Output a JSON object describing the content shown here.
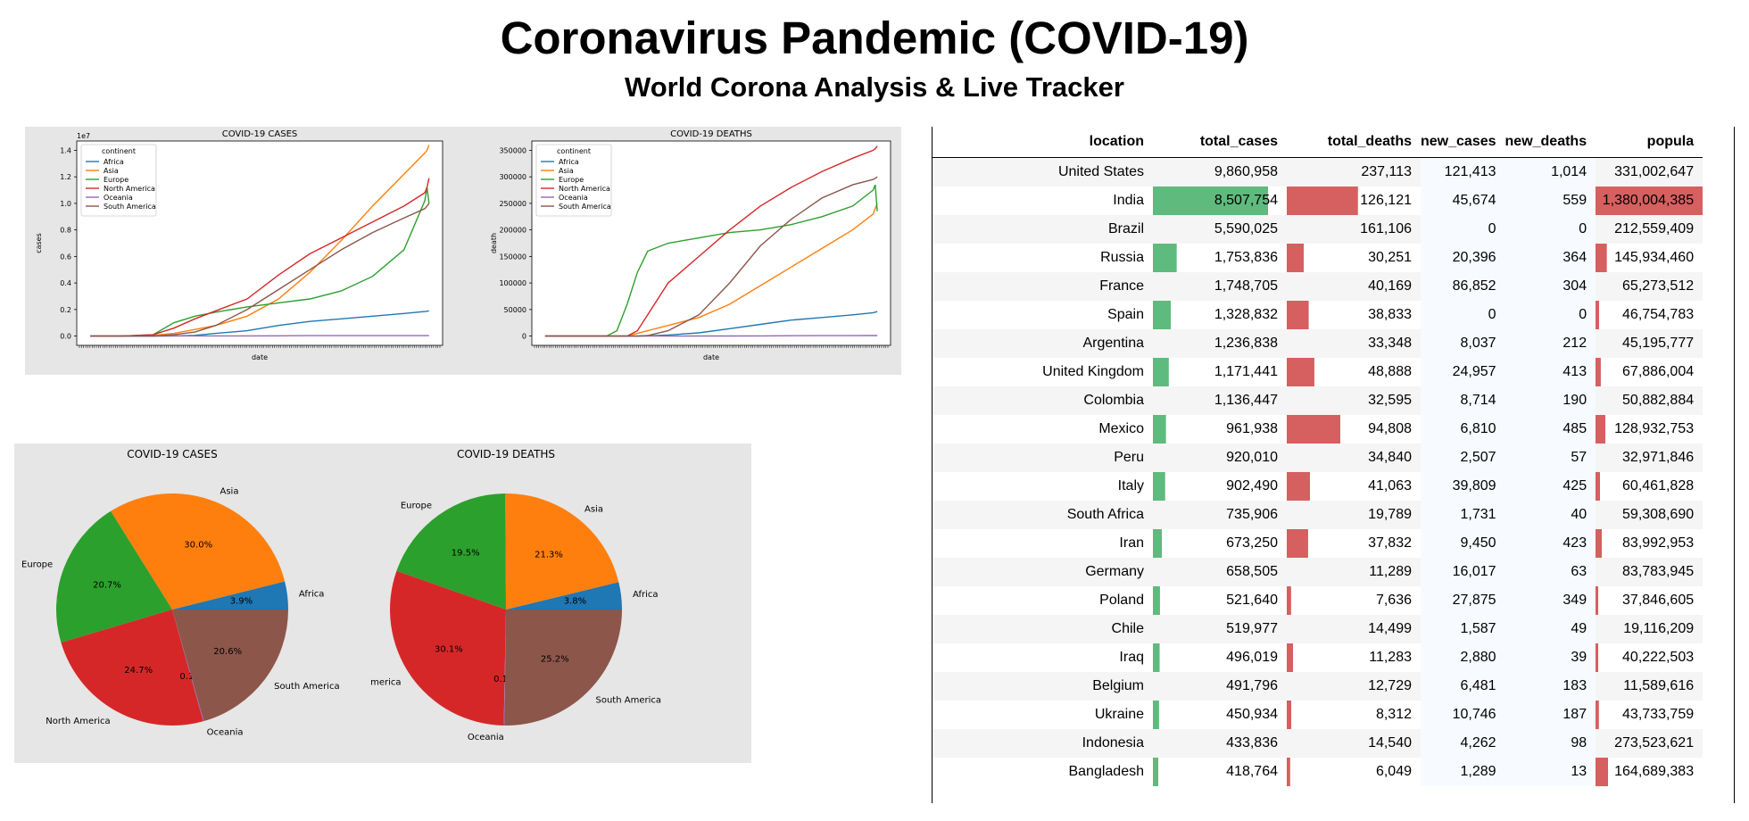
{
  "page": {
    "title": "Coronavirus Pandemic (COVID-19)",
    "subtitle": "World Corona Analysis & Live Tracker"
  },
  "colors": {
    "Africa": "#1f77b4",
    "Asia": "#ff7f0e",
    "Europe": "#2ca02c",
    "North America": "#d62728",
    "Oceania": "#9467bd",
    "South America": "#8c564b",
    "bar_green": "#5fba7d",
    "bar_red": "#d65f5f",
    "panel_bg": "#e6e6e6"
  },
  "chart_data": [
    {
      "id": "line-cases",
      "type": "line",
      "title": "COVID-19 CASES",
      "xlabel": "date",
      "ylabel": "cases",
      "offset_label": "1e7",
      "ylim": [
        -0.07,
        1.47
      ],
      "yticks": [
        0.0,
        0.2,
        0.4,
        0.6,
        0.8,
        1.0,
        1.2,
        1.4
      ],
      "ytick_labels": [
        "0.0",
        "0.2",
        "0.4",
        "0.6",
        "0.8",
        "1.0",
        "1.2",
        "1.4"
      ],
      "legend_title": "continent",
      "legend_position": "upper-left",
      "x": [
        0,
        30,
        60,
        80,
        100,
        120,
        150,
        180,
        210,
        240,
        270,
        300,
        320,
        322,
        324
      ],
      "series": [
        {
          "name": "Africa",
          "values": [
            0,
            0,
            0,
            0.001,
            0.005,
            0.02,
            0.04,
            0.08,
            0.11,
            0.13,
            0.15,
            0.17,
            0.185,
            0.187,
            0.19
          ]
        },
        {
          "name": "Asia",
          "values": [
            0,
            0,
            0.005,
            0.02,
            0.05,
            0.08,
            0.15,
            0.28,
            0.48,
            0.72,
            0.98,
            1.22,
            1.38,
            1.4,
            1.44
          ]
        },
        {
          "name": "Europe",
          "values": [
            0,
            0,
            0.01,
            0.1,
            0.15,
            0.18,
            0.22,
            0.25,
            0.28,
            0.34,
            0.45,
            0.65,
            1.02,
            1.12,
            1.0
          ]
        },
        {
          "name": "North America",
          "values": [
            0,
            0,
            0.01,
            0.06,
            0.13,
            0.19,
            0.28,
            0.46,
            0.62,
            0.74,
            0.86,
            0.98,
            1.08,
            1.12,
            1.19
          ]
        },
        {
          "name": "Oceania",
          "values": [
            0,
            0,
            0,
            0.001,
            0.001,
            0.001,
            0.001,
            0.002,
            0.003,
            0.003,
            0.003,
            0.003,
            0.003,
            0.003,
            0.003
          ]
        },
        {
          "name": "South America",
          "values": [
            0,
            0,
            0,
            0.01,
            0.03,
            0.08,
            0.2,
            0.35,
            0.5,
            0.65,
            0.78,
            0.89,
            0.96,
            0.98,
            1.0
          ]
        }
      ]
    },
    {
      "id": "line-deaths",
      "type": "line",
      "title": "COVID-19 DEATHS",
      "xlabel": "date",
      "ylabel": "death",
      "ylim": [
        -17500,
        367500
      ],
      "yticks": [
        0,
        50000,
        100000,
        150000,
        200000,
        250000,
        300000,
        350000
      ],
      "ytick_labels": [
        "0",
        "50000",
        "100000",
        "150000",
        "200000",
        "250000",
        "300000",
        "350000"
      ],
      "legend_title": "continent",
      "legend_position": "upper-left",
      "x": [
        0,
        30,
        60,
        70,
        80,
        90,
        100,
        120,
        150,
        180,
        210,
        240,
        270,
        300,
        320,
        322,
        324
      ],
      "series": [
        {
          "name": "Africa",
          "values": [
            0,
            0,
            0,
            0,
            0,
            0,
            500,
            2000,
            6000,
            14000,
            22000,
            30000,
            35000,
            40000,
            44000,
            45000,
            46000
          ]
        },
        {
          "name": "Asia",
          "values": [
            0,
            0,
            0,
            0,
            0,
            5000,
            10000,
            20000,
            35000,
            60000,
            95000,
            130000,
            165000,
            200000,
            230000,
            240000,
            250000
          ]
        },
        {
          "name": "Europe",
          "values": [
            0,
            0,
            0,
            10000,
            60000,
            120000,
            160000,
            175000,
            185000,
            195000,
            200000,
            210000,
            225000,
            245000,
            275000,
            285000,
            235000
          ]
        },
        {
          "name": "North America",
          "values": [
            0,
            0,
            0,
            0,
            0,
            10000,
            40000,
            100000,
            150000,
            200000,
            245000,
            280000,
            310000,
            335000,
            350000,
            353000,
            358000
          ]
        },
        {
          "name": "Oceania",
          "values": [
            0,
            0,
            0,
            0,
            0,
            0,
            0,
            0,
            100,
            200,
            400,
            600,
            800,
            900,
            1000,
            1000,
            1000
          ]
        },
        {
          "name": "South America",
          "values": [
            0,
            0,
            0,
            0,
            0,
            0,
            1000,
            10000,
            40000,
            100000,
            170000,
            220000,
            260000,
            285000,
            295000,
            297000,
            300000
          ]
        }
      ]
    },
    {
      "id": "pie-cases",
      "type": "pie",
      "title": "COVID-19 CASES",
      "labels": [
        "Africa",
        "Asia",
        "Europe",
        "North America",
        "Oceania",
        "South America"
      ],
      "values": [
        3.9,
        30.0,
        20.7,
        24.7,
        0.1,
        20.6
      ],
      "value_labels": [
        "3.9%",
        "30.0%",
        "20.7%",
        "24.7%",
        "0.1%",
        "20.6%"
      ]
    },
    {
      "id": "pie-deaths",
      "type": "pie",
      "title": "COVID-19 DEATHS",
      "labels": [
        "Africa",
        "Asia",
        "Europe",
        "North America",
        "Oceania",
        "South America"
      ],
      "values": [
        3.8,
        21.3,
        19.5,
        30.1,
        0.1,
        25.2
      ],
      "value_labels": [
        "3.8%",
        "21.3%",
        "19.5%",
        "30.1%",
        "0.1%",
        "25.2%"
      ]
    },
    {
      "id": "table",
      "type": "table",
      "columns": [
        "location",
        "total_cases",
        "total_deaths",
        "new_cases",
        "new_deaths",
        "popula"
      ],
      "rows": [
        [
          "United States",
          "9,860,958",
          "237,113",
          "121,413",
          "1,014",
          "331,002,647"
        ],
        [
          "India",
          "8,507,754",
          "126,121",
          "45,674",
          "559",
          "1,380,004,385"
        ],
        [
          "Brazil",
          "5,590,025",
          "161,106",
          "0",
          "0",
          "212,559,409"
        ],
        [
          "Russia",
          "1,753,836",
          "30,251",
          "20,396",
          "364",
          "145,934,460"
        ],
        [
          "France",
          "1,748,705",
          "40,169",
          "86,852",
          "304",
          "65,273,512"
        ],
        [
          "Spain",
          "1,328,832",
          "38,833",
          "0",
          "0",
          "46,754,783"
        ],
        [
          "Argentina",
          "1,236,838",
          "33,348",
          "8,037",
          "212",
          "45,195,777"
        ],
        [
          "United Kingdom",
          "1,171,441",
          "48,888",
          "24,957",
          "413",
          "67,886,004"
        ],
        [
          "Colombia",
          "1,136,447",
          "32,595",
          "8,714",
          "190",
          "50,882,884"
        ],
        [
          "Mexico",
          "961,938",
          "94,808",
          "6,810",
          "485",
          "128,932,753"
        ],
        [
          "Peru",
          "920,010",
          "34,840",
          "2,507",
          "57",
          "32,971,846"
        ],
        [
          "Italy",
          "902,490",
          "41,063",
          "39,809",
          "425",
          "60,461,828"
        ],
        [
          "South Africa",
          "735,906",
          "19,789",
          "1,731",
          "40",
          "59,308,690"
        ],
        [
          "Iran",
          "673,250",
          "37,832",
          "9,450",
          "423",
          "83,992,953"
        ],
        [
          "Germany",
          "658,505",
          "11,289",
          "16,017",
          "63",
          "83,783,945"
        ],
        [
          "Poland",
          "521,640",
          "7,636",
          "27,875",
          "349",
          "37,846,605"
        ],
        [
          "Chile",
          "519,977",
          "14,499",
          "1,587",
          "49",
          "19,116,209"
        ],
        [
          "Iraq",
          "496,019",
          "11,283",
          "2,880",
          "39",
          "40,222,503"
        ],
        [
          "Belgium",
          "491,796",
          "12,729",
          "6,481",
          "183",
          "11,589,616"
        ],
        [
          "Ukraine",
          "450,934",
          "8,312",
          "10,746",
          "187",
          "43,733,759"
        ],
        [
          "Indonesia",
          "433,836",
          "14,540",
          "4,262",
          "98",
          "273,523,621"
        ],
        [
          "Bangladesh",
          "418,764",
          "6,049",
          "1,289",
          "13",
          "164,689,383"
        ]
      ]
    }
  ]
}
